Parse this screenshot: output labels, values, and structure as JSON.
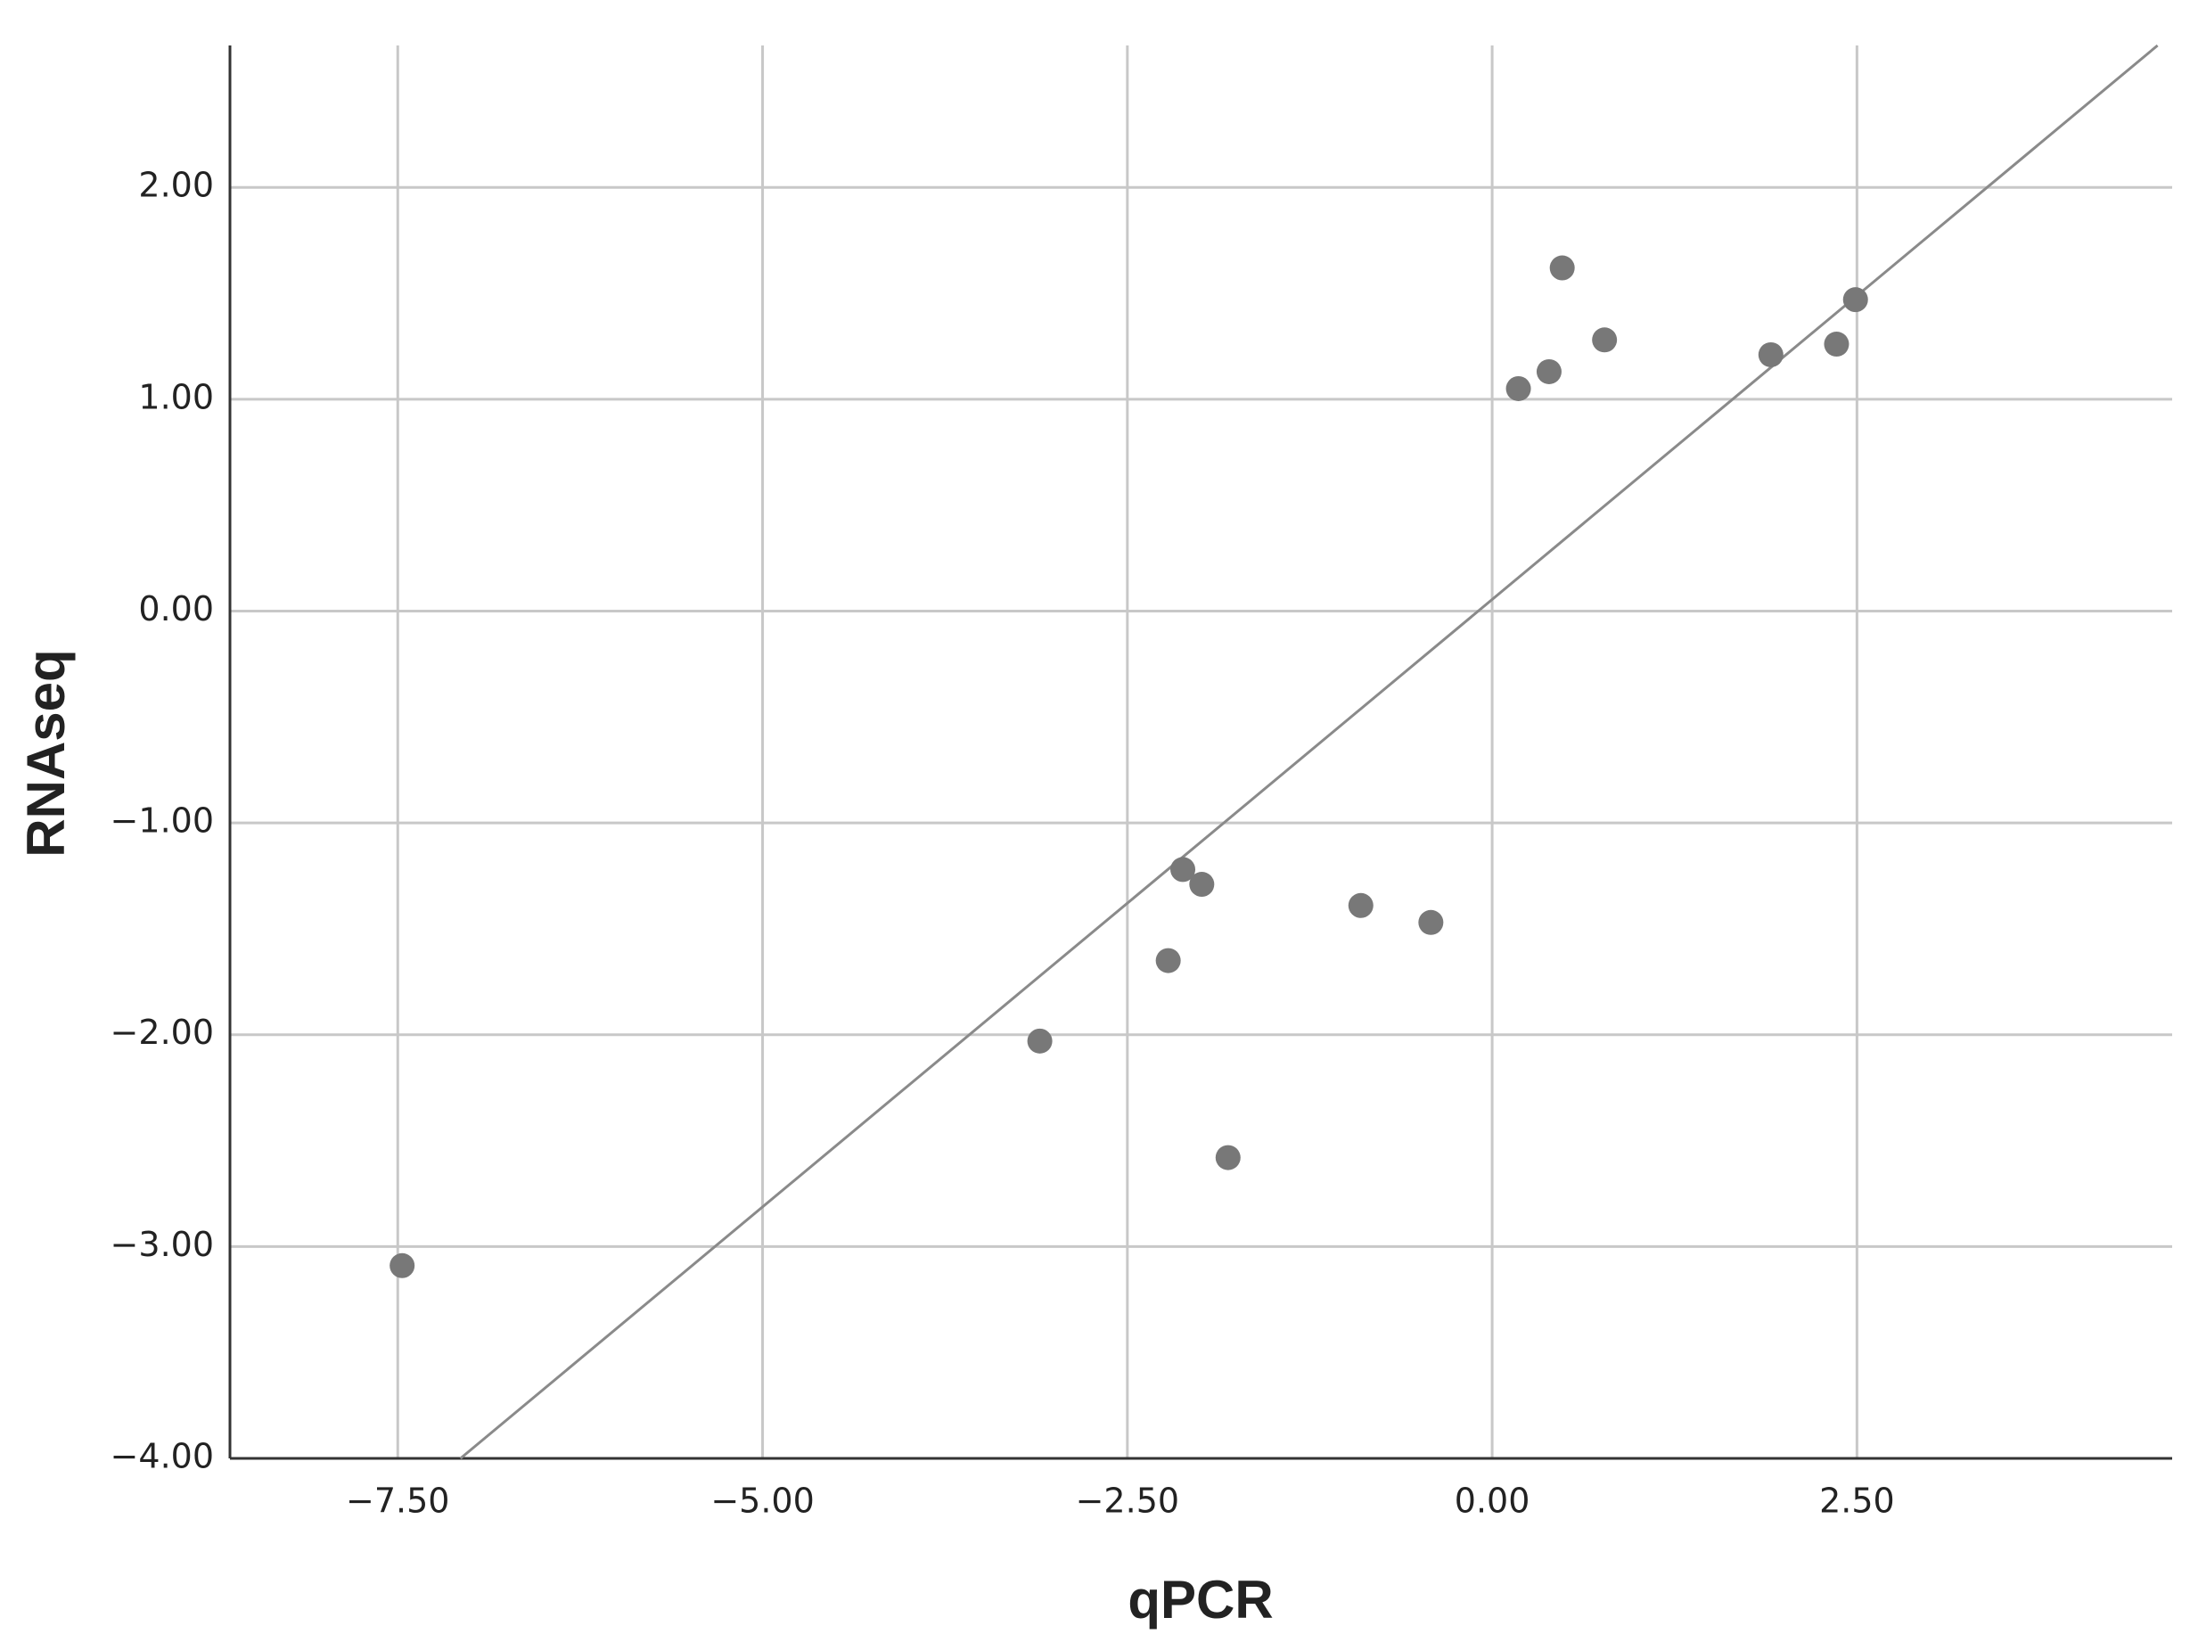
{
  "chart_data": {
    "type": "scatter",
    "x_label": "qPCR",
    "y_label": "RNAseq",
    "x": [
      -7.47,
      -3.1,
      -2.22,
      -2.12,
      -1.99,
      -1.81,
      -0.9,
      -0.42,
      0.18,
      0.39,
      0.48,
      0.77,
      1.91,
      2.36,
      2.49
    ],
    "values": [
      -3.09,
      -2.03,
      -1.65,
      -1.22,
      -1.29,
      -2.58,
      -1.39,
      -1.47,
      1.05,
      1.13,
      1.62,
      1.28,
      1.21,
      1.26,
      1.47
    ],
    "color": "#787878",
    "fit_line": {
      "x": [
        -7.07,
        4.56
      ],
      "y": [
        -4,
        2.67
      ],
      "color": "#8a8a8a"
    },
    "xlim": [
      -8.65,
      4.66
    ],
    "ylim": [
      -4,
      2.67
    ],
    "xticks": [
      {
        "value": -7.5,
        "label": "−7.50"
      },
      {
        "value": -5,
        "label": "−5.00"
      },
      {
        "value": -2.5,
        "label": "−2.50"
      },
      {
        "value": 0,
        "label": "0.00"
      },
      {
        "value": 2.5,
        "label": "2.50"
      }
    ],
    "yticks": [
      {
        "value": -4,
        "label": "−4.00"
      },
      {
        "value": -3,
        "label": "−3.00"
      },
      {
        "value": -2,
        "label": "−2.00"
      },
      {
        "value": -1,
        "label": "−1.00"
      },
      {
        "value": 0,
        "label": "0.00"
      },
      {
        "value": 1,
        "label": "1.00"
      },
      {
        "value": 2,
        "label": "2.00"
      }
    ],
    "grid": true
  }
}
